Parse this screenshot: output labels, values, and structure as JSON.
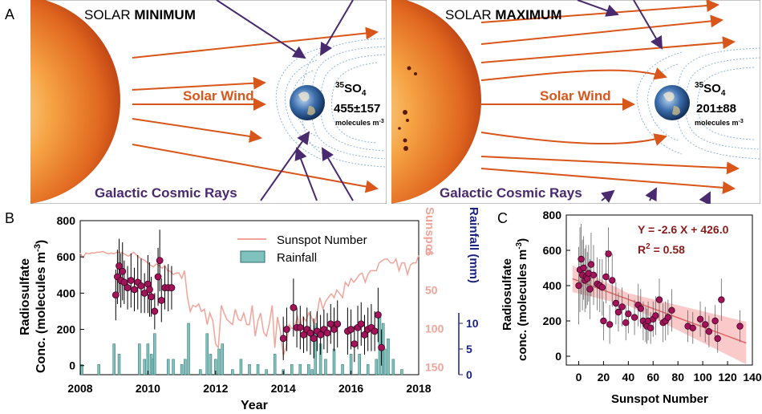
{
  "figure": {
    "panel_a_label": "A",
    "panel_b_label": "B",
    "panel_c_label": "C"
  },
  "panel_a": {
    "minimum": {
      "title_prefix": "SOLAR",
      "title_emph": "MINIMUM",
      "solar_wind": "Solar Wind",
      "cosmic_rays": "Galactic Cosmic Rays",
      "species_sup": "35",
      "species_base": "SO",
      "species_sub": "4",
      "value": "455±157",
      "units_text": "molecules m",
      "units_sup": "-3"
    },
    "maximum": {
      "title_prefix": "SOLAR",
      "title_emph": "MAXIMUM",
      "solar_wind": "Solar Wind",
      "cosmic_rays": "Galactic Cosmic Rays",
      "species_sup": "35",
      "species_base": "SO",
      "species_sub": "4",
      "value": "201±88",
      "units_text": "molecules m",
      "units_sup": "-3"
    },
    "colors": {
      "wind": "#d9561a",
      "cosmic": "#4a2a6e",
      "field": "#8fb6e0"
    }
  },
  "chart_data": [
    {
      "type": "scatter",
      "id": "panel-b",
      "title": "",
      "xlabel": "Year",
      "ylabel_line1": "Radiosulfate",
      "ylabel_line2": "Conc. (molecules m",
      "ylabel_sup": "-3",
      "ylabel_close": ")",
      "xlim": [
        2008,
        2018
      ],
      "ylim": [
        -50,
        800
      ],
      "x_ticks": [
        2008,
        2010,
        2012,
        2014,
        2016,
        2018
      ],
      "x_tick_labels": [
        "2008",
        "2010",
        "2012",
        "2014",
        "2016",
        "2018"
      ],
      "y_ticks": [
        0,
        200,
        400,
        600,
        800
      ],
      "y_tick_labels": [
        "0",
        "200",
        "400",
        "600",
        "800"
      ],
      "sunspot_axis": {
        "label": "Sunspot",
        "range": [
          160,
          -40
        ],
        "ticks": [
          0,
          50,
          100,
          150
        ],
        "tick_labels": [
          "0",
          "50",
          "100",
          "150"
        ],
        "color": "#f2a49a"
      },
      "rainfall_axis": {
        "label": "Rainfall (mm)",
        "range": [
          0,
          30
        ],
        "ticks": [
          0,
          5,
          10
        ],
        "tick_labels": [
          "0",
          "5",
          "10"
        ],
        "color": "#1a237e"
      },
      "legend": {
        "position": "top-right",
        "entries": [
          "Sunspot Number",
          "Rainfall"
        ]
      },
      "sunspot": {
        "x": [
          2008.0,
          2008.08,
          2008.17,
          2008.25,
          2008.33,
          2008.42,
          2008.5,
          2008.58,
          2008.67,
          2008.75,
          2008.83,
          2008.92,
          2009.0,
          2009.08,
          2009.17,
          2009.25,
          2009.33,
          2009.42,
          2009.5,
          2009.58,
          2009.67,
          2009.75,
          2009.83,
          2009.92,
          2010.0,
          2010.08,
          2010.17,
          2010.25,
          2010.33,
          2010.42,
          2010.5,
          2010.58,
          2010.67,
          2010.75,
          2010.83,
          2010.92,
          2011.0,
          2011.08,
          2011.17,
          2011.25,
          2011.33,
          2011.42,
          2011.5,
          2011.58,
          2011.67,
          2011.75,
          2011.83,
          2011.92,
          2012.0,
          2012.08,
          2012.17,
          2012.25,
          2012.33,
          2012.42,
          2012.5,
          2012.58,
          2012.67,
          2012.75,
          2012.83,
          2012.92,
          2013.0,
          2013.08,
          2013.17,
          2013.25,
          2013.33,
          2013.42,
          2013.5,
          2013.58,
          2013.67,
          2013.75,
          2013.83,
          2013.92,
          2014.0,
          2014.08,
          2014.17,
          2014.25,
          2014.33,
          2014.42,
          2014.5,
          2014.58,
          2014.67,
          2014.75,
          2014.83,
          2014.92,
          2015.0,
          2015.08,
          2015.17,
          2015.25,
          2015.33,
          2015.42,
          2015.5,
          2015.58,
          2015.67,
          2015.75,
          2015.83,
          2015.92,
          2016.0,
          2016.08,
          2016.17,
          2016.25,
          2016.33,
          2016.42,
          2016.5,
          2016.58,
          2016.67,
          2016.75,
          2016.83,
          2016.92,
          2017.0,
          2017.08,
          2017.17,
          2017.25,
          2017.33,
          2017.42,
          2017.5,
          2017.58,
          2017.67,
          2017.75,
          2017.83,
          2017.92,
          2018.0
        ],
        "values": [
          2,
          8,
          2,
          3,
          2,
          2,
          1,
          1,
          0,
          2,
          3,
          2,
          3,
          1,
          1,
          2,
          4,
          6,
          4,
          1,
          5,
          8,
          10,
          12,
          15,
          18,
          20,
          16,
          18,
          22,
          18,
          25,
          26,
          30,
          28,
          28,
          35,
          25,
          60,
          78,
          70,
          72,
          68,
          78,
          75,
          95,
          80,
          90,
          120,
          125,
          70,
          80,
          88,
          92,
          95,
          75,
          88,
          90,
          80,
          95,
          95,
          70,
          110,
          90,
          80,
          105,
          110,
          95,
          70,
          125,
          85,
          105,
          135,
          125,
          95,
          100,
          98,
          85,
          100,
          85,
          90,
          80,
          85,
          95,
          80,
          60,
          75,
          65,
          60,
          55,
          60,
          50,
          55,
          60,
          40,
          45,
          35,
          40,
          35,
          30,
          28,
          40,
          30,
          25,
          25,
          25,
          15,
          12,
          10,
          10,
          15,
          15,
          10,
          25,
          15,
          15,
          30,
          18,
          15,
          15,
          5
        ]
      },
      "radiosulfate": {
        "x": [
          2009.05,
          2009.1,
          2009.15,
          2009.2,
          2009.25,
          2009.3,
          2009.4,
          2009.5,
          2009.6,
          2009.7,
          2009.8,
          2009.9,
          2010.0,
          2010.05,
          2010.1,
          2010.2,
          2010.3,
          2010.35,
          2010.4,
          2010.5,
          2010.6,
          2010.7,
          2014.0,
          2014.1,
          2014.3,
          2014.4,
          2014.5,
          2014.6,
          2014.7,
          2014.8,
          2014.9,
          2015.0,
          2015.1,
          2015.2,
          2015.3,
          2015.4,
          2015.5,
          2015.6,
          2015.9,
          2016.0,
          2016.1,
          2016.2,
          2016.3,
          2016.4,
          2016.5,
          2016.6,
          2016.7,
          2016.8,
          2016.9
        ],
        "values": [
          390,
          490,
          550,
          470,
          520,
          460,
          430,
          470,
          420,
          460,
          440,
          400,
          450,
          420,
          380,
          300,
          490,
          580,
          360,
          430,
          430,
          430,
          150,
          200,
          320,
          210,
          210,
          170,
          200,
          180,
          150,
          190,
          170,
          200,
          180,
          230,
          200,
          230,
          190,
          200,
          120,
          210,
          230,
          170,
          200,
          210,
          190,
          280,
          100
        ],
        "errors": [
          140,
          150,
          150,
          150,
          160,
          120,
          120,
          150,
          120,
          150,
          150,
          110,
          160,
          150,
          110,
          100,
          160,
          170,
          120,
          120,
          130,
          120,
          120,
          120,
          160,
          110,
          120,
          100,
          120,
          120,
          110,
          110,
          110,
          110,
          110,
          110,
          120,
          130,
          130,
          110,
          100,
          120,
          120,
          110,
          120,
          130,
          110,
          150,
          100
        ]
      },
      "rainfall": {
        "x": [
          2008.05,
          2008.55,
          2009.0,
          2009.15,
          2009.75,
          2009.9,
          2010.0,
          2010.1,
          2010.15,
          2010.2,
          2010.6,
          2010.75,
          2011.0,
          2011.1,
          2011.2,
          2011.55,
          2011.75,
          2011.85,
          2012.0,
          2012.1,
          2012.2,
          2012.5,
          2012.75,
          2013.0,
          2013.25,
          2013.5,
          2013.75,
          2014.0,
          2014.25,
          2014.5,
          2014.75,
          2014.85,
          2014.95,
          2015.1,
          2015.25,
          2015.5,
          2015.75,
          2016.0,
          2016.25,
          2016.5,
          2016.75,
          2016.85,
          2016.95,
          2017.0,
          2017.1,
          2017.25,
          2017.5
        ],
        "values": [
          2,
          2,
          6,
          4,
          6,
          3,
          6,
          4,
          3,
          8,
          3,
          3,
          2,
          3,
          10,
          1,
          8,
          4,
          3,
          5,
          6,
          1,
          3,
          2,
          2,
          1,
          4,
          1,
          2,
          2,
          2,
          1,
          10,
          6,
          3,
          5,
          2,
          4,
          4,
          2,
          3,
          12,
          10,
          5,
          7,
          3,
          1
        ]
      }
    },
    {
      "type": "scatter",
      "id": "panel-c",
      "title": "",
      "xlabel": "Sunspot Number",
      "ylabel_line1": "Radiosulfate",
      "ylabel_line2": "conc. (molecules m",
      "ylabel_sup": "-3",
      "ylabel_close": ")",
      "xlim": [
        -10,
        140
      ],
      "ylim": [
        -50,
        800
      ],
      "x_ticks": [
        0,
        20,
        40,
        60,
        80,
        100,
        120,
        140
      ],
      "x_tick_labels": [
        "0",
        "20",
        "40",
        "60",
        "80",
        "100",
        "120",
        "140"
      ],
      "y_ticks": [
        0,
        200,
        400,
        600,
        800
      ],
      "y_tick_labels": [
        "0",
        "200",
        "400",
        "600",
        "800"
      ],
      "equation": "Y = -2.6 X + 426.0",
      "r2_prefix": "R",
      "r2_sup": "2",
      "r2_suffix": " = 0.58",
      "fit": {
        "slope": -2.6,
        "intercept": 426.0
      },
      "points": {
        "x": [
          0,
          1,
          2,
          3,
          4,
          5,
          6,
          7,
          8,
          9,
          10,
          12,
          15,
          17,
          19,
          20,
          22,
          24,
          25,
          27,
          30,
          32,
          35,
          38,
          40,
          45,
          48,
          50,
          52,
          54,
          55,
          56,
          58,
          60,
          62,
          65,
          68,
          70,
          72,
          75,
          88,
          92,
          98,
          102,
          105,
          110,
          112,
          115,
          130
        ],
        "values": [
          400,
          490,
          550,
          460,
          500,
          430,
          450,
          440,
          470,
          380,
          520,
          460,
          410,
          400,
          390,
          200,
          450,
          580,
          180,
          430,
          300,
          250,
          280,
          190,
          240,
          220,
          290,
          270,
          200,
          180,
          170,
          200,
          160,
          210,
          230,
          320,
          190,
          200,
          220,
          260,
          170,
          160,
          210,
          180,
          140,
          200,
          100,
          320,
          170
        ],
        "errors": [
          220,
          240,
          200,
          200,
          180,
          180,
          180,
          150,
          160,
          170,
          180,
          170,
          150,
          150,
          160,
          110,
          150,
          150,
          110,
          150,
          120,
          110,
          110,
          100,
          110,
          100,
          120,
          110,
          110,
          100,
          100,
          110,
          90,
          100,
          110,
          120,
          110,
          110,
          100,
          120,
          90,
          90,
          100,
          100,
          90,
          90,
          80,
          120,
          90
        ]
      }
    }
  ]
}
